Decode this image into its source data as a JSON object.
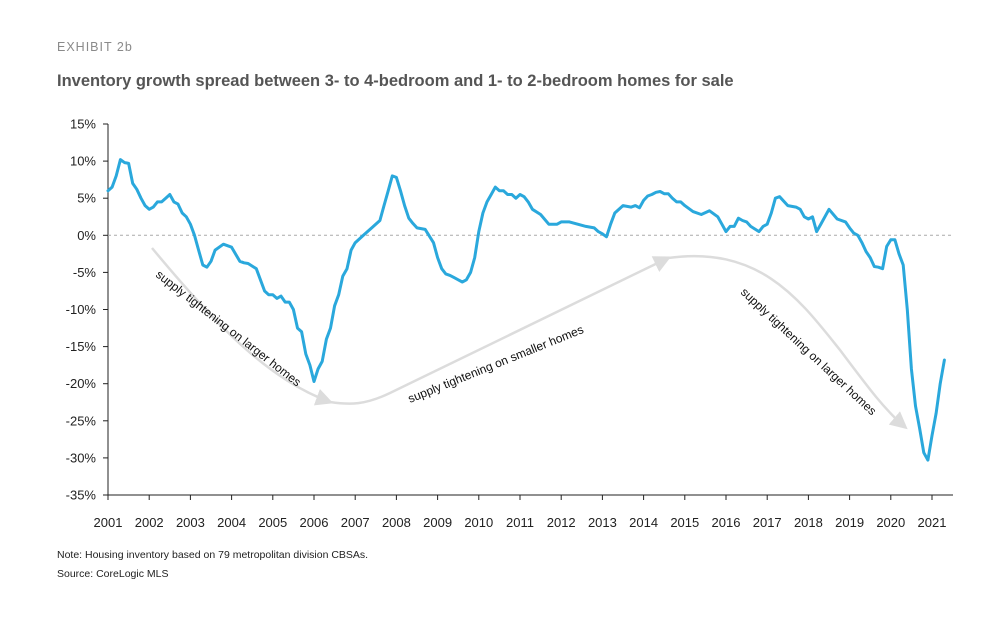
{
  "exhibit_label": "EXHIBIT 2b",
  "title": "Inventory growth spread between 3- to 4-bedroom and 1- to 2-bedroom homes for sale",
  "notes": {
    "note": "Note: Housing inventory based on 79 metropolitan division CBSAs.",
    "source": "Source: CoreLogic MLS"
  },
  "colors": {
    "line": "#2aa8dc",
    "zero_line": "#aaaaaa",
    "arrow": "#dcdcdc",
    "axis": "#222222"
  },
  "chart_data": {
    "type": "line",
    "title": "Inventory growth spread between 3- to 4-bedroom and 1- to 2-bedroom homes for sale",
    "xlabel": "",
    "ylabel": "",
    "xlim": [
      2001,
      2021.5
    ],
    "ylim": [
      -35,
      15
    ],
    "x_ticks": [
      "2001",
      "2002",
      "2003",
      "2004",
      "2005",
      "2006",
      "2007",
      "2008",
      "2009",
      "2010",
      "2011",
      "2012",
      "2013",
      "2014",
      "2015",
      "2016",
      "2017",
      "2018",
      "2019",
      "2020",
      "2021"
    ],
    "y_ticks": [
      "15%",
      "10%",
      "5%",
      "0%",
      "-5%",
      "-10%",
      "-15%",
      "-20%",
      "-25%",
      "-30%",
      "-35%"
    ],
    "y_tick_values": [
      15,
      10,
      5,
      0,
      -5,
      -10,
      -15,
      -20,
      -25,
      -30,
      -35
    ],
    "reference_line": {
      "y": 0,
      "style": "dashed"
    },
    "grid": false,
    "series": [
      {
        "x": [
          2001.0,
          2001.1,
          2001.2,
          2001.3,
          2001.4,
          2001.5,
          2001.6,
          2001.7,
          2001.8,
          2001.9,
          2002.0,
          2002.1,
          2002.2,
          2002.3,
          2002.4,
          2002.5,
          2002.6,
          2002.7,
          2002.8,
          2002.9,
          2003.0,
          2003.1,
          2003.2,
          2003.3,
          2003.4,
          2003.5,
          2003.6,
          2003.8,
          2004.0,
          2004.2,
          2004.3,
          2004.4,
          2004.6,
          2004.8,
          2004.9,
          2005.0,
          2005.1,
          2005.2,
          2005.3,
          2005.4,
          2005.5,
          2005.6,
          2005.7,
          2005.8,
          2005.9,
          2006.0,
          2006.1,
          2006.2,
          2006.3,
          2006.4,
          2006.5,
          2006.6,
          2006.7,
          2006.8,
          2006.9,
          2007.0,
          2007.2,
          2007.4,
          2007.6,
          2007.7,
          2007.8,
          2007.9,
          2008.0,
          2008.1,
          2008.2,
          2008.3,
          2008.4,
          2008.5,
          2008.7,
          2008.9,
          2009.0,
          2009.1,
          2009.2,
          2009.3,
          2009.4,
          2009.5,
          2009.6,
          2009.7,
          2009.8,
          2009.9,
          2010.0,
          2010.1,
          2010.2,
          2010.3,
          2010.4,
          2010.5,
          2010.6,
          2010.7,
          2010.8,
          2010.9,
          2011.0,
          2011.1,
          2011.2,
          2011.3,
          2011.5,
          2011.7,
          2011.9,
          2012.0,
          2012.2,
          2012.4,
          2012.6,
          2012.8,
          2012.9,
          2013.0,
          2013.1,
          2013.2,
          2013.3,
          2013.5,
          2013.7,
          2013.8,
          2013.9,
          2014.0,
          2014.1,
          2014.2,
          2014.3,
          2014.4,
          2014.5,
          2014.6,
          2014.7,
          2014.8,
          2014.9,
          2015.0,
          2015.2,
          2015.4,
          2015.6,
          2015.8,
          2015.9,
          2016.0,
          2016.1,
          2016.2,
          2016.3,
          2016.4,
          2016.5,
          2016.6,
          2016.8,
          2016.9,
          2017.0,
          2017.1,
          2017.2,
          2017.3,
          2017.5,
          2017.7,
          2017.8,
          2017.9,
          2018.0,
          2018.1,
          2018.2,
          2018.3,
          2018.5,
          2018.7,
          2018.9,
          2019.0,
          2019.1,
          2019.2,
          2019.3,
          2019.4,
          2019.5,
          2019.6,
          2019.7,
          2019.8,
          2019.9,
          2020.0,
          2020.1,
          2020.2,
          2020.3,
          2020.4,
          2020.5,
          2020.6,
          2020.7,
          2020.8,
          2020.9,
          2021.0,
          2021.1,
          2021.2,
          2021.3
        ],
        "y": [
          6,
          6.5,
          8,
          10.2,
          9.8,
          9.7,
          7,
          6.2,
          5,
          4,
          3.5,
          3.8,
          4.5,
          4.5,
          5,
          5.5,
          4.5,
          4.2,
          3,
          2.5,
          1.5,
          0,
          -2,
          -4,
          -4.3,
          -3.5,
          -2,
          -1.2,
          -1.6,
          -3.5,
          -3.7,
          -3.8,
          -4.5,
          -7.5,
          -8,
          -8,
          -8.5,
          -8.2,
          -9,
          -9,
          -10,
          -12.5,
          -13,
          -16,
          -17.5,
          -19.7,
          -18,
          -17,
          -14,
          -12.5,
          -9.5,
          -8,
          -5.5,
          -4.5,
          -2,
          -1,
          0,
          1,
          2,
          4,
          6,
          8,
          7.8,
          6,
          4,
          2.3,
          1.6,
          1,
          0.8,
          -1,
          -3,
          -4.5,
          -5.2,
          -5.4,
          -5.7,
          -6,
          -6.3,
          -6,
          -5,
          -3,
          0.5,
          3,
          4.5,
          5.5,
          6.5,
          6,
          6,
          5.5,
          5.5,
          5,
          5.5,
          5.2,
          4.5,
          3.5,
          2.8,
          1.5,
          1.5,
          1.8,
          1.8,
          1.5,
          1.2,
          1,
          0.5,
          0.2,
          -0.2,
          1.5,
          3,
          4,
          3.8,
          4,
          3.7,
          4.7,
          5.3,
          5.5,
          5.8,
          5.9,
          5.6,
          5.6,
          5,
          4.5,
          4.5,
          4,
          3.2,
          2.8,
          3.3,
          2.5,
          1.5,
          0.5,
          1.2,
          1.2,
          2.3,
          2,
          1.8,
          1.2,
          0.5,
          1.2,
          1.5,
          3,
          5,
          5.2,
          4,
          3.8,
          3.5,
          2.5,
          2.2,
          2.5,
          0.5,
          1.5,
          3.5,
          2.2,
          1.8,
          1,
          0.3,
          0,
          -1,
          -2.2,
          -3,
          -4.2,
          -4.3,
          -4.5,
          -1.5,
          -0.6,
          -0.6,
          -2.5,
          -4,
          -10,
          -18,
          -23,
          -26,
          -29.3,
          -30.3,
          -27,
          -24,
          -20,
          -16.8
        ]
      }
    ],
    "annotations": [
      {
        "text": "supply tightening on larger homes",
        "id": "left"
      },
      {
        "text": "supply tightening on smaller homes",
        "id": "middle"
      },
      {
        "text": "supply tightening on larger homes",
        "id": "right"
      }
    ]
  }
}
